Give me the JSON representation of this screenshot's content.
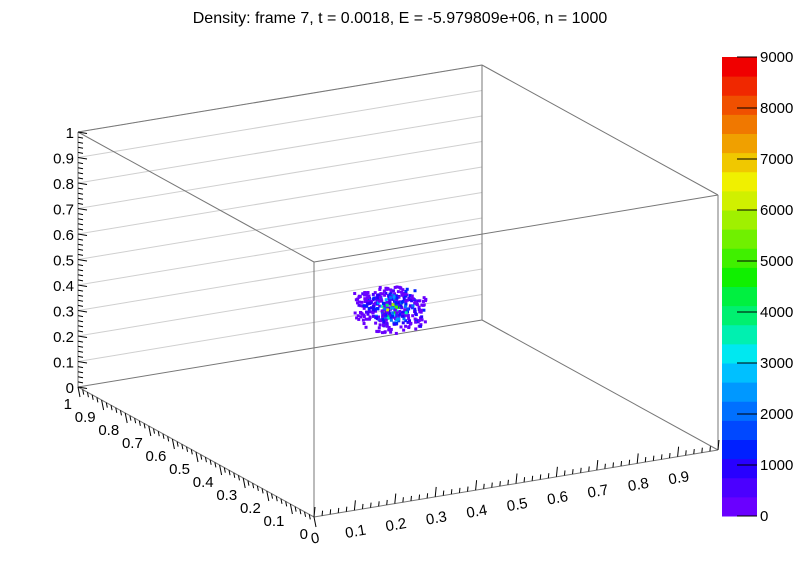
{
  "chart_data": {
    "type": "scatter",
    "title": "Density: frame 7, t = 0.0018, E = -5.979809e+06, n = 1000",
    "xlabel": "",
    "ylabel": "",
    "zlabel": "",
    "xlim": [
      0,
      1
    ],
    "ylim": [
      0,
      1
    ],
    "zlim": [
      0,
      1
    ],
    "x_ticks": [
      "0",
      "0.1",
      "0.2",
      "0.3",
      "0.4",
      "0.5",
      "0.6",
      "0.7",
      "0.8",
      "0.9"
    ],
    "y_ticks": [
      "0",
      "0.1",
      "0.2",
      "0.3",
      "0.4",
      "0.5",
      "0.6",
      "0.7",
      "0.8",
      "0.9",
      "1"
    ],
    "z_ticks": [
      "0",
      "0.1",
      "0.2",
      "0.3",
      "0.4",
      "0.5",
      "0.6",
      "0.7",
      "0.8",
      "0.9",
      "1"
    ],
    "colorbar": {
      "min": 0,
      "max": 9000,
      "tick_labels": [
        "0",
        "1000",
        "2000",
        "3000",
        "4000",
        "5000",
        "6000",
        "7000",
        "8000",
        "9000"
      ],
      "colors": [
        "#6a00ff",
        "#4b00ff",
        "#2800ff",
        "#0020ff",
        "#0048ff",
        "#0070ff",
        "#0098ff",
        "#00c0ff",
        "#00e8f0",
        "#00f0b0",
        "#00f070",
        "#00f040",
        "#10f000",
        "#40f000",
        "#70f000",
        "#a0f000",
        "#d0f000",
        "#f0f000",
        "#f0c800",
        "#f0a000",
        "#f07800",
        "#f05000",
        "#f02800",
        "#f00000"
      ]
    },
    "cluster": {
      "center": [
        0.46,
        0.46,
        0.46
      ],
      "extent": 0.06,
      "value_range": [
        0,
        9000
      ]
    }
  }
}
